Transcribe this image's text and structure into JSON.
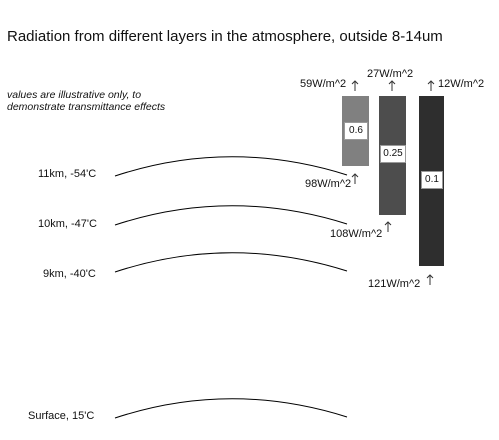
{
  "title": "Radiation from different layers in the atmosphere, outside 8-14um",
  "note": "values are illustrative only, to demonstrate transmittance effects",
  "layers": [
    {
      "label": "11km, -54'C"
    },
    {
      "label": "10km, -47'C"
    },
    {
      "label": "9km, -40'C"
    },
    {
      "label": "Surface, 15'C"
    }
  ],
  "bars": [
    {
      "transmittance": "0.6",
      "color": "#808080",
      "top_flux": "59W/m^2",
      "bottom_flux": "98W/m^2"
    },
    {
      "transmittance": "0.25",
      "color": "#4d4d4d",
      "top_flux": "27W/m^2",
      "bottom_flux": "108W/m^2"
    },
    {
      "transmittance": "0.1",
      "color": "#2e2e2e",
      "top_flux": "12W/m^2",
      "bottom_flux": "121W/m^2"
    }
  ]
}
